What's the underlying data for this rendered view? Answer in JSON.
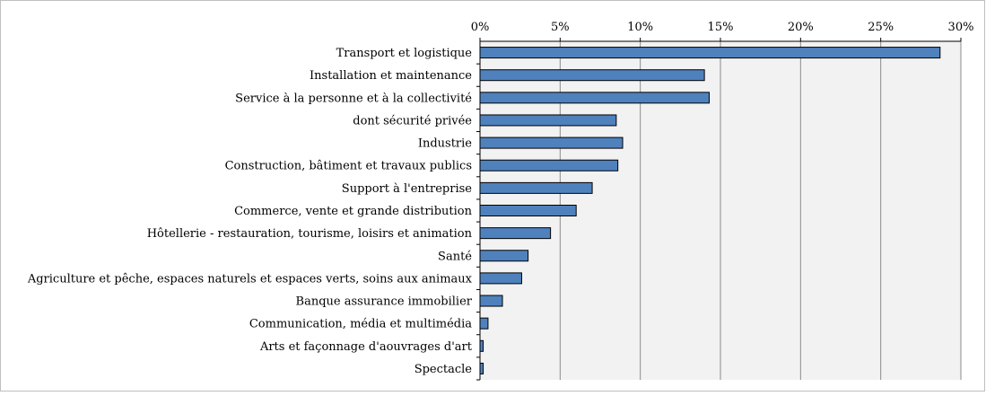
{
  "chart_data": {
    "type": "bar",
    "orientation": "horizontal",
    "categories": [
      "Transport et logistique",
      "Installation et maintenance",
      "Service à la personne et à la collectivité",
      "dont sécurité privée",
      "Industrie",
      "Construction, bâtiment et travaux publics",
      "Support à l'entreprise",
      "Commerce, vente et grande distribution",
      "Hôtellerie - restauration, tourisme, loisirs et animation",
      "Santé",
      "Agriculture et pêche, espaces naturels et espaces verts, soins aux animaux",
      "Banque assurance immobilier",
      "Communication, média et multimédia",
      "Arts et façonnage d'aouvrages d'art",
      "Spectacle"
    ],
    "values": [
      28.7,
      14.0,
      14.3,
      8.5,
      8.9,
      8.6,
      7.0,
      6.0,
      4.4,
      3.0,
      2.6,
      1.4,
      0.5,
      0.2,
      0.2
    ],
    "x_ticks": [
      "0%",
      "5%",
      "10%",
      "15%",
      "20%",
      "25%",
      "30%"
    ],
    "xlim": [
      0,
      30
    ],
    "title": "",
    "xlabel": "",
    "ylabel": "",
    "x_axis_position": "top",
    "grid": true,
    "legend": "none",
    "colors": {
      "bar_fill": "#4F81BD",
      "bar_stroke": "#000000",
      "plot_background": "#F2F2F2",
      "gridline": "#8C8C8C",
      "text": "#000000"
    }
  }
}
